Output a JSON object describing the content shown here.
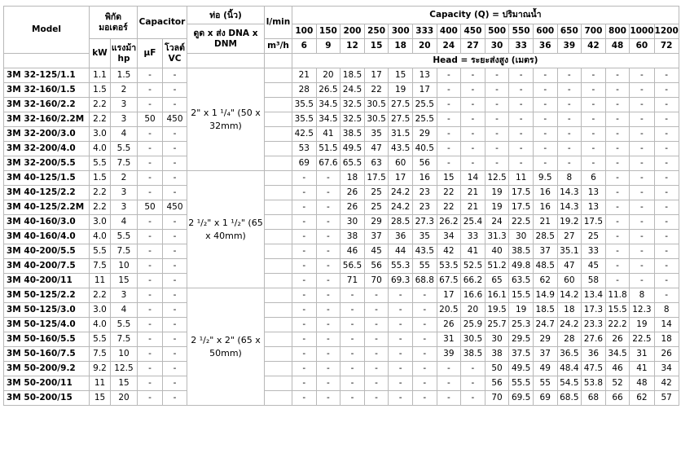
{
  "headers": {
    "model": "Model",
    "motor_power": "พิกัด มอเตอร์",
    "capacitor": "Capacitor",
    "pipe": "ท่อ (นิ้ว)",
    "lmin": "l/min",
    "m3h": "m³/h",
    "capacity": "Capacity (Q) = ปริมาณน้ำ",
    "kw": "kW",
    "hp": "แรงม้า hp",
    "uf": "µF",
    "vc": "โวลต์ VC",
    "suction": "ดูด x ส่ง DNA x DNM",
    "head": "Head = ระยะส่งสูง (เมตร)"
  },
  "flow_lmin": [
    "100",
    "150",
    "200",
    "250",
    "300",
    "333",
    "400",
    "450",
    "500",
    "550",
    "600",
    "650",
    "700",
    "800",
    "1000",
    "1200"
  ],
  "flow_m3h": [
    "6",
    "9",
    "12",
    "15",
    "18",
    "20",
    "24",
    "27",
    "30",
    "33",
    "36",
    "39",
    "42",
    "48",
    "60",
    "72"
  ],
  "groups": [
    {
      "pipe": "2\" x 1 ¹/₄\" (50 x 32mm)",
      "rows": [
        {
          "model": "3M 32-125/1.1",
          "kw": "1.1",
          "hp": "1.5",
          "uf": "-",
          "vc": "-",
          "heads": [
            "21",
            "20",
            "18.5",
            "17",
            "15",
            "13",
            "-",
            "-",
            "-",
            "-",
            "-",
            "-",
            "-",
            "-",
            "-",
            "-"
          ]
        },
        {
          "model": "3M 32-160/1.5",
          "kw": "1.5",
          "hp": "2",
          "uf": "-",
          "vc": "-",
          "heads": [
            "28",
            "26.5",
            "24.5",
            "22",
            "19",
            "17",
            "-",
            "-",
            "-",
            "-",
            "-",
            "-",
            "-",
            "-",
            "-",
            "-"
          ]
        },
        {
          "model": "3M 32-160/2.2",
          "kw": "2.2",
          "hp": "3",
          "uf": "-",
          "vc": "-",
          "heads": [
            "35.5",
            "34.5",
            "32.5",
            "30.5",
            "27.5",
            "25.5",
            "-",
            "-",
            "-",
            "-",
            "-",
            "-",
            "-",
            "-",
            "-",
            "-"
          ]
        },
        {
          "model": "3M 32-160/2.2M",
          "kw": "2.2",
          "hp": "3",
          "uf": "50",
          "vc": "450",
          "heads": [
            "35.5",
            "34.5",
            "32.5",
            "30.5",
            "27.5",
            "25.5",
            "-",
            "-",
            "-",
            "-",
            "-",
            "-",
            "-",
            "-",
            "-",
            "-"
          ]
        },
        {
          "model": "3M 32-200/3.0",
          "kw": "3.0",
          "hp": "4",
          "uf": "-",
          "vc": "-",
          "heads": [
            "42.5",
            "41",
            "38.5",
            "35",
            "31.5",
            "29",
            "-",
            "-",
            "-",
            "-",
            "-",
            "-",
            "-",
            "-",
            "-",
            "-"
          ]
        },
        {
          "model": "3M 32-200/4.0",
          "kw": "4.0",
          "hp": "5.5",
          "uf": "-",
          "vc": "-",
          "heads": [
            "53",
            "51.5",
            "49.5",
            "47",
            "43.5",
            "40.5",
            "-",
            "-",
            "-",
            "-",
            "-",
            "-",
            "-",
            "-",
            "-",
            "-"
          ]
        },
        {
          "model": "3M 32-200/5.5",
          "kw": "5.5",
          "hp": "7.5",
          "uf": "-",
          "vc": "-",
          "heads": [
            "69",
            "67.6",
            "65.5",
            "63",
            "60",
            "56",
            "-",
            "-",
            "-",
            "-",
            "-",
            "-",
            "-",
            "-",
            "-",
            "-"
          ]
        }
      ]
    },
    {
      "pipe": "2 ¹/₂\" x 1 ¹/₂\" (65 x 40mm)",
      "rows": [
        {
          "model": "3M 40-125/1.5",
          "kw": "1.5",
          "hp": "2",
          "uf": "-",
          "vc": "-",
          "heads": [
            "-",
            "-",
            "18",
            "17.5",
            "17",
            "16",
            "15",
            "14",
            "12.5",
            "11",
            "9.5",
            "8",
            "6",
            "-",
            "-",
            "-"
          ]
        },
        {
          "model": "3M 40-125/2.2",
          "kw": "2.2",
          "hp": "3",
          "uf": "-",
          "vc": "-",
          "heads": [
            "-",
            "-",
            "26",
            "25",
            "24.2",
            "23",
            "22",
            "21",
            "19",
            "17.5",
            "16",
            "14.3",
            "13",
            "-",
            "-",
            "-"
          ]
        },
        {
          "model": "3M 40-125/2.2M",
          "kw": "2.2",
          "hp": "3",
          "uf": "50",
          "vc": "450",
          "heads": [
            "-",
            "-",
            "26",
            "25",
            "24.2",
            "23",
            "22",
            "21",
            "19",
            "17.5",
            "16",
            "14.3",
            "13",
            "-",
            "-",
            "-"
          ]
        },
        {
          "model": "3M 40-160/3.0",
          "kw": "3.0",
          "hp": "4",
          "uf": "-",
          "vc": "-",
          "heads": [
            "-",
            "-",
            "30",
            "29",
            "28.5",
            "27.3",
            "26.2",
            "25.4",
            "24",
            "22.5",
            "21",
            "19.2",
            "17.5",
            "-",
            "-",
            "-"
          ]
        },
        {
          "model": "3M 40-160/4.0",
          "kw": "4.0",
          "hp": "5.5",
          "uf": "-",
          "vc": "-",
          "heads": [
            "-",
            "-",
            "38",
            "37",
            "36",
            "35",
            "34",
            "33",
            "31.3",
            "30",
            "28.5",
            "27",
            "25",
            "-",
            "-",
            "-"
          ]
        },
        {
          "model": "3M 40-200/5.5",
          "kw": "5.5",
          "hp": "7.5",
          "uf": "-",
          "vc": "-",
          "heads": [
            "-",
            "-",
            "46",
            "45",
            "44",
            "43.5",
            "42",
            "41",
            "40",
            "38.5",
            "37",
            "35.1",
            "33",
            "-",
            "-",
            "-"
          ]
        },
        {
          "model": "3M 40-200/7.5",
          "kw": "7.5",
          "hp": "10",
          "uf": "-",
          "vc": "-",
          "heads": [
            "-",
            "-",
            "56.5",
            "56",
            "55.3",
            "55",
            "53.5",
            "52.5",
            "51.2",
            "49.8",
            "48.5",
            "47",
            "45",
            "-",
            "-",
            "-"
          ]
        },
        {
          "model": "3M 40-200/11",
          "kw": "11",
          "hp": "15",
          "uf": "-",
          "vc": "-",
          "heads": [
            "-",
            "-",
            "71",
            "70",
            "69.3",
            "68.8",
            "67.5",
            "66.2",
            "65",
            "63.5",
            "62",
            "60",
            "58",
            "-",
            "-",
            "-"
          ]
        }
      ]
    },
    {
      "pipe": "2 ¹/₂\" x 2\" (65 x 50mm)",
      "rows": [
        {
          "model": "3M 50-125/2.2",
          "kw": "2.2",
          "hp": "3",
          "uf": "-",
          "vc": "-",
          "heads": [
            "-",
            "-",
            "-",
            "-",
            "-",
            "-",
            "17",
            "16.6",
            "16.1",
            "15.5",
            "14.9",
            "14.2",
            "13.4",
            "11.8",
            "8",
            "-"
          ]
        },
        {
          "model": "3M 50-125/3.0",
          "kw": "3.0",
          "hp": "4",
          "uf": "-",
          "vc": "-",
          "heads": [
            "-",
            "-",
            "-",
            "-",
            "-",
            "-",
            "20.5",
            "20",
            "19.5",
            "19",
            "18.5",
            "18",
            "17.3",
            "15.5",
            "12.3",
            "8"
          ]
        },
        {
          "model": "3M 50-125/4.0",
          "kw": "4.0",
          "hp": "5.5",
          "uf": "-",
          "vc": "-",
          "heads": [
            "-",
            "-",
            "-",
            "-",
            "-",
            "-",
            "26",
            "25.9",
            "25.7",
            "25.3",
            "24.7",
            "24.2",
            "23.3",
            "22.2",
            "19",
            "14"
          ]
        },
        {
          "model": "3M 50-160/5.5",
          "kw": "5.5",
          "hp": "7.5",
          "uf": "-",
          "vc": "-",
          "heads": [
            "-",
            "-",
            "-",
            "-",
            "-",
            "-",
            "31",
            "30.5",
            "30",
            "29.5",
            "29",
            "28",
            "27.6",
            "26",
            "22.5",
            "18"
          ]
        },
        {
          "model": "3M 50-160/7.5",
          "kw": "7.5",
          "hp": "10",
          "uf": "-",
          "vc": "-",
          "heads": [
            "-",
            "-",
            "-",
            "-",
            "-",
            "-",
            "39",
            "38.5",
            "38",
            "37.5",
            "37",
            "36.5",
            "36",
            "34.5",
            "31",
            "26"
          ]
        },
        {
          "model": "3M 50-200/9.2",
          "kw": "9.2",
          "hp": "12.5",
          "uf": "-",
          "vc": "-",
          "heads": [
            "-",
            "-",
            "-",
            "-",
            "-",
            "-",
            "-",
            "-",
            "50",
            "49.5",
            "49",
            "48.4",
            "47.5",
            "46",
            "41",
            "34"
          ]
        },
        {
          "model": "3M 50-200/11",
          "kw": "11",
          "hp": "15",
          "uf": "-",
          "vc": "-",
          "heads": [
            "-",
            "-",
            "-",
            "-",
            "-",
            "-",
            "-",
            "-",
            "56",
            "55.5",
            "55",
            "54.5",
            "53.8",
            "52",
            "48",
            "42"
          ]
        },
        {
          "model": "3M 50-200/15",
          "kw": "15",
          "hp": "20",
          "uf": "-",
          "vc": "-",
          "heads": [
            "-",
            "-",
            "-",
            "-",
            "-",
            "-",
            "-",
            "-",
            "70",
            "69.5",
            "69",
            "68.5",
            "68",
            "66",
            "62",
            "57"
          ]
        }
      ]
    }
  ]
}
